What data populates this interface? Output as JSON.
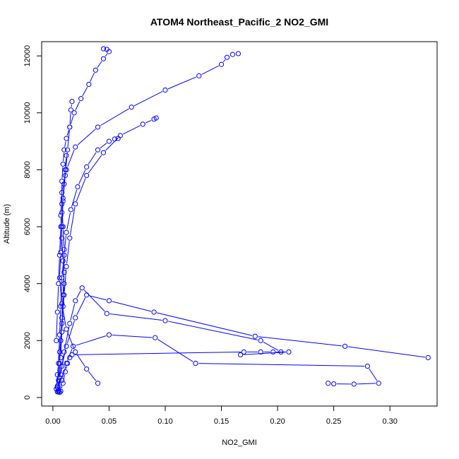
{
  "chart_data": {
    "type": "line",
    "title": "ATOM4 Northeast_Pacific_2 NO2_GMI",
    "xlabel": "NO2_GMI",
    "ylabel": "Altitude (m)",
    "xlim": [
      -0.01,
      0.342
    ],
    "ylim": [
      -300,
      12500
    ],
    "x_ticks": [
      0.0,
      0.05,
      0.1,
      0.15,
      0.2,
      0.25,
      0.3
    ],
    "x_tick_labels": [
      "0.00",
      "0.05",
      "0.10",
      "0.15",
      "0.20",
      "0.25",
      "0.30"
    ],
    "y_ticks": [
      0,
      2000,
      4000,
      6000,
      8000,
      10000,
      12000
    ],
    "y_tick_labels": [
      "0",
      "2000",
      "4000",
      "6000",
      "8000",
      "10000",
      "12000"
    ],
    "grid": false,
    "marker": "open-circle",
    "color": "#0000ff",
    "series": [
      {
        "x": [
          0.004,
          0.005,
          0.006,
          0.007,
          0.008,
          0.009,
          0.01,
          0.01,
          0.009,
          0.008,
          0.008,
          0.009,
          0.01,
          0.012,
          0.015,
          0.019,
          0.025,
          0.032,
          0.038,
          0.045,
          0.05,
          0.048,
          0.045
        ],
        "y": [
          200,
          600,
          1200,
          2000,
          2800,
          3600,
          4400,
          5200,
          6000,
          6800,
          7600,
          8200,
          8700,
          9100,
          9500,
          10000,
          10500,
          11000,
          11500,
          11900,
          12150,
          12230,
          12250
        ]
      },
      {
        "x": [
          0.005,
          0.006,
          0.007,
          0.008,
          0.009,
          0.01,
          0.009,
          0.008,
          0.007,
          0.008,
          0.012,
          0.02,
          0.04,
          0.07,
          0.1,
          0.13,
          0.15,
          0.155,
          0.16,
          0.165
        ],
        "y": [
          250,
          700,
          1400,
          2300,
          3200,
          4000,
          4800,
          5600,
          6400,
          7200,
          8000,
          8800,
          9500,
          10200,
          10800,
          11300,
          11700,
          11950,
          12050,
          12080
        ]
      },
      {
        "x": [
          0.04,
          0.03,
          0.02,
          0.012,
          0.008,
          0.006,
          0.007,
          0.008,
          0.009,
          0.011,
          0.013,
          0.015,
          0.016,
          0.017
        ],
        "y": [
          500,
          1000,
          1600,
          2400,
          3300,
          4200,
          5100,
          6000,
          6900,
          7800,
          8700,
          9500,
          10100,
          10400
        ]
      },
      {
        "x": [
          0.003,
          0.004,
          0.006,
          0.008,
          0.01,
          0.012,
          0.015,
          0.02,
          0.03,
          0.045,
          0.06,
          0.08,
          0.09,
          0.092
        ],
        "y": [
          300,
          800,
          1600,
          2600,
          3600,
          4600,
          5600,
          6800,
          7800,
          8600,
          9200,
          9600,
          9780,
          9820
        ]
      },
      {
        "x": [
          0.004,
          0.005,
          0.006,
          0.007,
          0.008,
          0.01,
          0.012,
          0.016,
          0.022,
          0.03,
          0.04,
          0.05,
          0.055,
          0.058
        ],
        "y": [
          400,
          1200,
          2200,
          3200,
          4200,
          5000,
          5800,
          6600,
          7400,
          8100,
          8700,
          9000,
          9080,
          9100
        ]
      },
      {
        "x": [
          0.004,
          0.006,
          0.008,
          0.012,
          0.02,
          0.03,
          0.05,
          0.09,
          0.18,
          0.26,
          0.334
        ],
        "y": [
          350,
          700,
          1100,
          1800,
          2800,
          3600,
          3400,
          3000,
          2150,
          1800,
          1400
        ]
      },
      {
        "x": [
          0.005,
          0.007,
          0.01,
          0.015,
          0.02,
          0.026,
          0.048,
          0.1,
          0.185,
          0.203
        ],
        "y": [
          200,
          800,
          1600,
          2600,
          3400,
          3850,
          2950,
          2700,
          2000,
          1600
        ]
      },
      {
        "x": [
          0.006,
          0.008,
          0.012,
          0.018,
          0.05,
          0.091,
          0.127,
          0.28,
          0.29,
          0.268,
          0.25,
          0.245
        ],
        "y": [
          180,
          600,
          1200,
          1800,
          2200,
          2100,
          1200,
          1100,
          500,
          470,
          480,
          500
        ]
      },
      {
        "x": [
          0.007,
          0.009,
          0.011,
          0.013,
          0.015,
          0.017,
          0.17,
          0.185,
          0.196,
          0.21,
          0.167
        ],
        "y": [
          220,
          500,
          900,
          1200,
          1400,
          1500,
          1600,
          1600,
          1600,
          1600,
          1500
        ]
      },
      {
        "x": [
          0.003,
          0.004,
          0.005,
          0.006,
          0.007,
          0.008,
          0.009,
          0.01,
          0.011,
          0.012
        ],
        "y": [
          2000,
          3000,
          4000,
          5000,
          6000,
          6500,
          7000,
          7500,
          8000,
          8500
        ]
      }
    ]
  }
}
